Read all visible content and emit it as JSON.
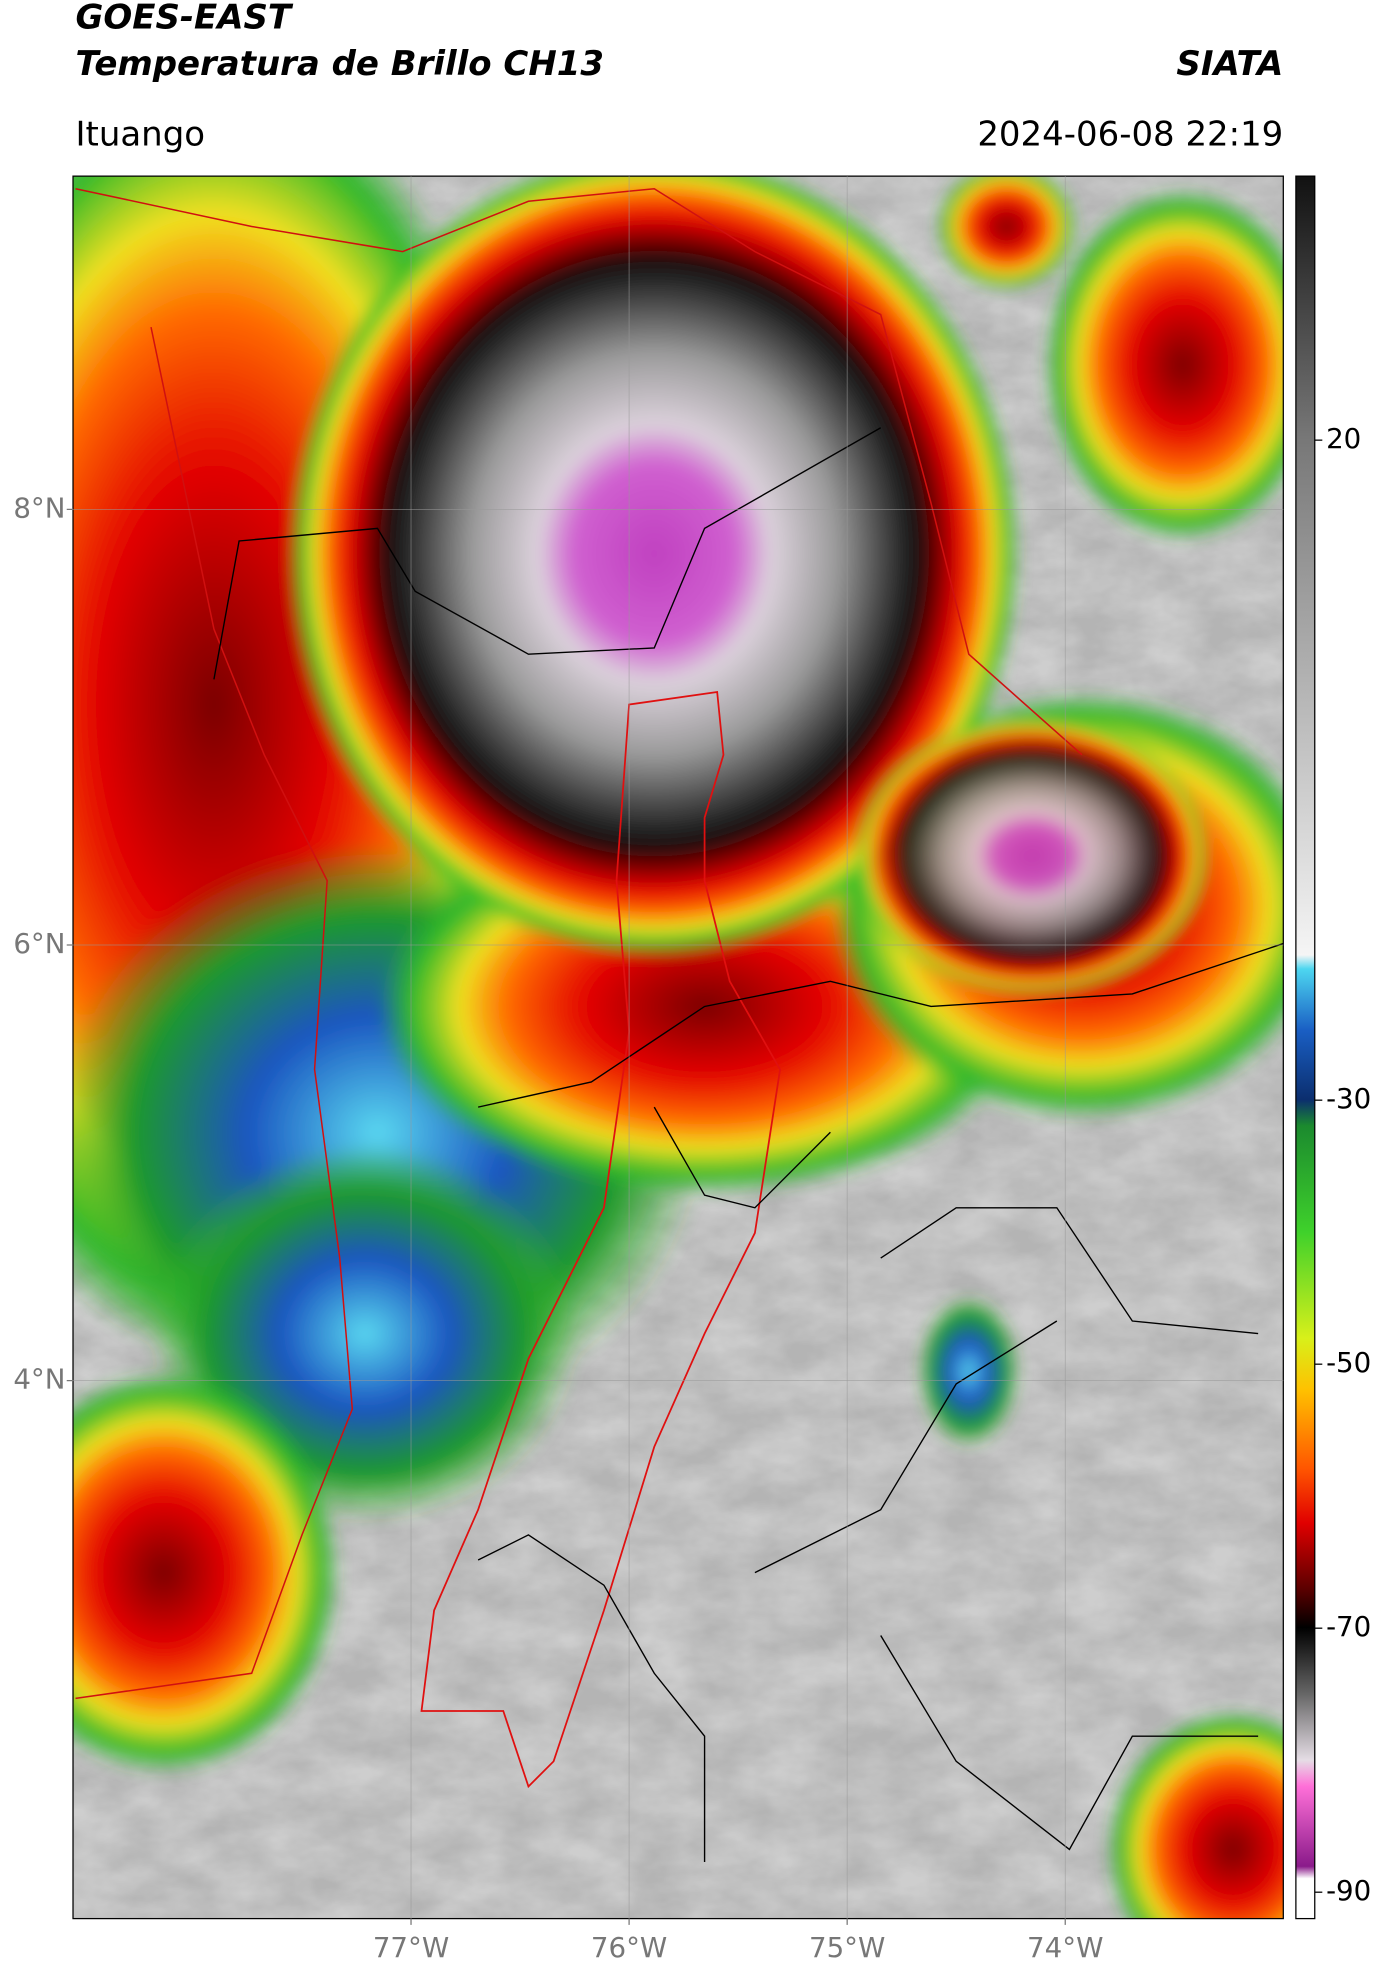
{
  "chart_data": {
    "type": "map",
    "title": "GOES-EAST",
    "subtitle": "Temperatura de Brillo CH13",
    "source": "SIATA",
    "location": "Ituango",
    "timestamp": "2024-06-08 22:19",
    "xlim": [
      -78.55,
      -73
    ],
    "ylim": [
      1.53,
      9.53
    ],
    "xticks": [
      {
        "value": -77,
        "label": "77°W"
      },
      {
        "value": -76,
        "label": "76°W"
      },
      {
        "value": -75,
        "label": "75°W"
      },
      {
        "value": -74,
        "label": "74°W"
      }
    ],
    "yticks": [
      {
        "value": 8,
        "label": "8°N"
      },
      {
        "value": 6,
        "label": "6°N"
      },
      {
        "value": 4,
        "label": "4°N"
      }
    ],
    "grid": true,
    "colorbar": {
      "lim": [
        -92,
        40
      ],
      "ticks": [
        20,
        -30,
        -50,
        -70,
        -90
      ]
    }
  }
}
